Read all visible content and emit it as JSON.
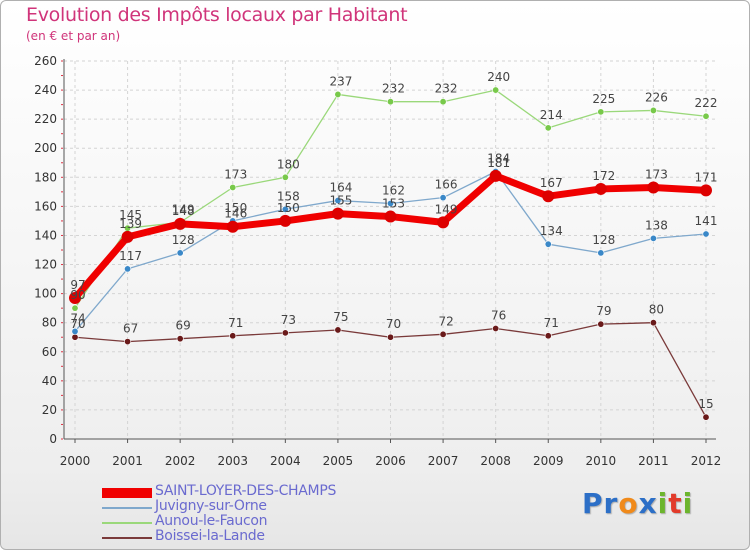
{
  "title": "Evolution des Impôts locaux par Habitant",
  "subtitle": "(en € et par an)",
  "logo": {
    "text": "Proxiti",
    "colors": [
      "#2c6fc7",
      "#2c6fc7",
      "#f08a1a",
      "#2c6fc7",
      "#6cb52d",
      "#e23b2b",
      "#6cb52d"
    ]
  },
  "chart_data": {
    "type": "line",
    "title": "Evolution des Impôts locaux par Habitant",
    "subtitle": "(en € et par an)",
    "xlabel": "",
    "ylabel": "",
    "ylim": [
      0,
      260
    ],
    "yticks": [
      0,
      20,
      40,
      60,
      80,
      100,
      120,
      140,
      160,
      180,
      200,
      220,
      240,
      260
    ],
    "x": [
      "2000",
      "2001",
      "2002",
      "2003",
      "2004",
      "2005",
      "2006",
      "2007",
      "2008",
      "2009",
      "2010",
      "2011",
      "2012"
    ],
    "grid": true,
    "legend_position": "bottom-left",
    "series": [
      {
        "name": "SAINT-LOYER-DES-CHAMPS",
        "color": "#f00000",
        "marker": "#dd0000",
        "width": 7,
        "values": [
          97,
          139,
          148,
          146,
          150,
          155,
          153,
          149,
          181,
          167,
          172,
          173,
          171
        ]
      },
      {
        "name": "Juvigny-sur-Orne",
        "color": "#7fa8cc",
        "marker": "#3a88c8",
        "width": 1.3,
        "values": [
          74,
          117,
          128,
          150,
          158,
          164,
          162,
          166,
          184,
          134,
          128,
          138,
          141
        ]
      },
      {
        "name": "Aunou-le-Faucon",
        "color": "#9ad87a",
        "marker": "#78c94a",
        "width": 1.3,
        "values": [
          90,
          145,
          149,
          173,
          180,
          237,
          232,
          232,
          240,
          214,
          225,
          226,
          222
        ]
      },
      {
        "name": "Boissei-la-Lande",
        "color": "#7a3a3a",
        "marker": "#6a1a1a",
        "width": 1.3,
        "values": [
          70,
          67,
          69,
          71,
          73,
          75,
          70,
          72,
          76,
          71,
          79,
          80,
          15
        ]
      }
    ],
    "data_labels": [
      {
        "series": 0,
        "labels": [
          "97",
          "139",
          "148",
          "146",
          "150",
          "155",
          "153",
          "149",
          "181",
          "167",
          "172",
          "173",
          "171"
        ]
      },
      {
        "series": 1,
        "labels": [
          "74",
          "117",
          "128",
          "150",
          "158",
          "164",
          "162",
          "166",
          "184",
          "134",
          "128",
          "138",
          "141"
        ]
      },
      {
        "series": 2,
        "labels": [
          "90",
          "145",
          "149",
          "173",
          "180",
          "237",
          "232",
          "232",
          "240",
          "214",
          "225",
          "226",
          "222"
        ]
      },
      {
        "series": 3,
        "labels": [
          "70",
          "67",
          "69",
          "71",
          "73",
          "75",
          "70",
          "72",
          "76",
          "71",
          "79",
          "80",
          "15"
        ]
      }
    ]
  }
}
